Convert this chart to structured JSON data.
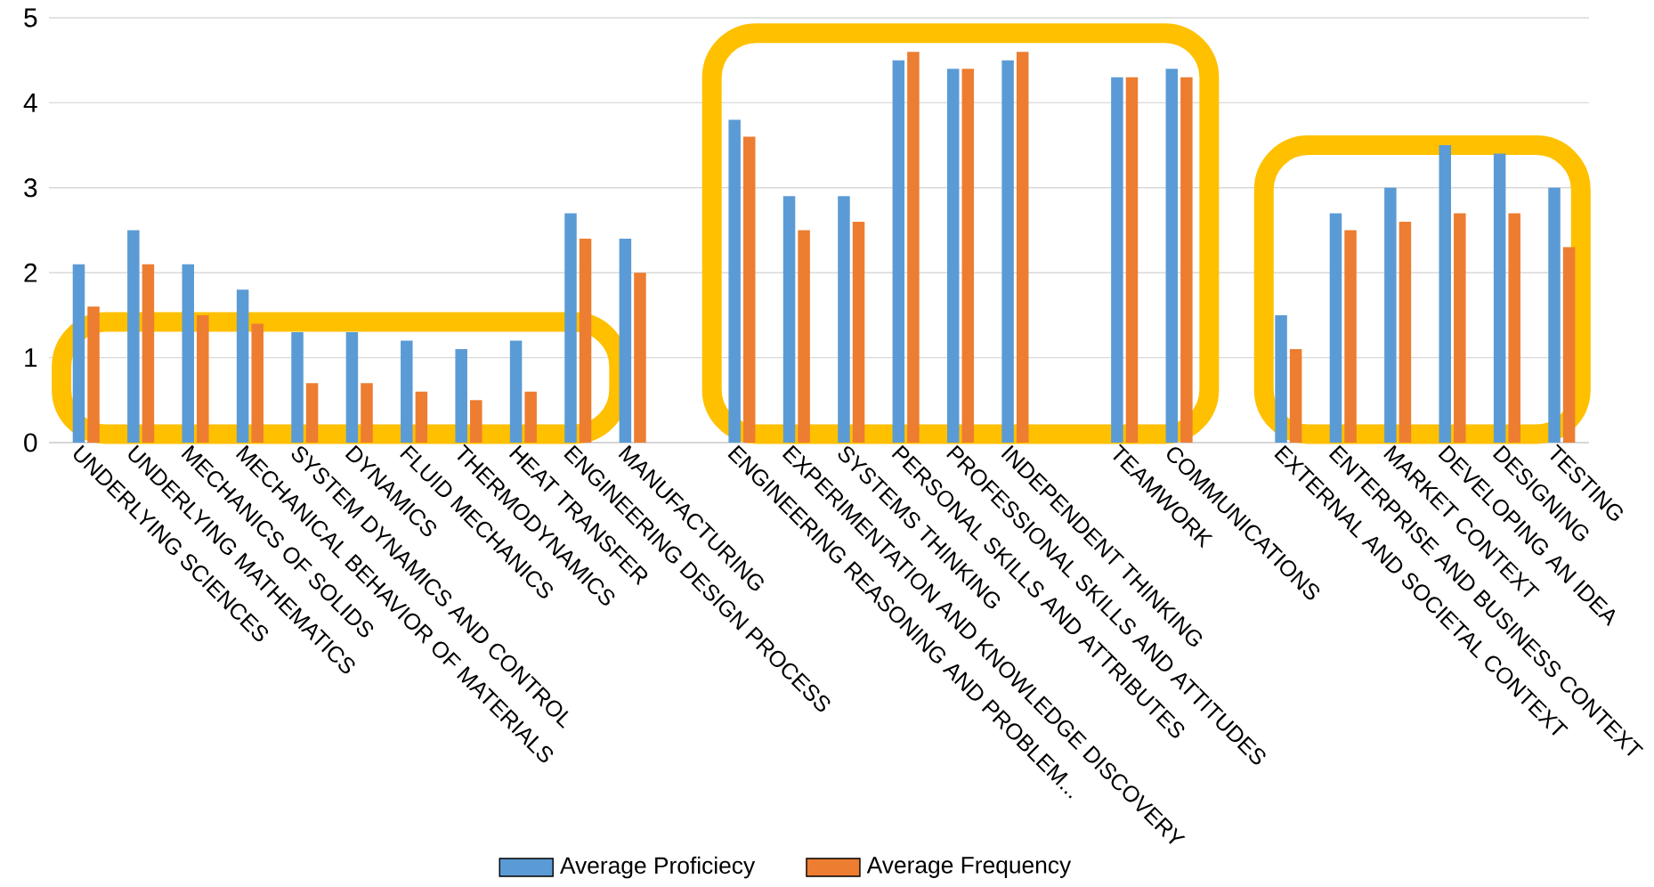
{
  "chart_data": {
    "type": "bar",
    "categories": [
      "UNDERLYING SCIENCES",
      "UNDERLYING MATHEMATICS",
      "MECHANICS OF SOLIDS",
      "MECHANICAL BEHAVIOR OF MATERIALS",
      "SYSTEM DYNAMICS AND CONTROL",
      "DYNAMICS",
      "FLUID MECHANICS",
      "THERMODYNAMICS",
      "HEAT TRANSFER",
      "ENGINEERING DESIGN PROCESS",
      "MANUFACTURING",
      null,
      "ENGINEERING REASONING AND PROBLEM...",
      "EXPERIMENTATION AND KNOWLEDGE DISCOVERY",
      "SYSTEMS THINKING",
      "PERSONAL SKILLS AND ATTRIBUTES",
      "PROFESSIONAL SKILLS AND ATTITUDES",
      "INDEPENDENT THINKING",
      null,
      "TEAMWORK",
      "COMMUNICATIONS",
      null,
      "EXTERNAL AND SOCIETAL CONTEXT",
      "ENTERPRISE AND BUSINESS CONTEXT",
      "MARKET CONTEXT",
      "DEVELOPING AN IDEA",
      "DESIGNING",
      "TESTING"
    ],
    "series": [
      {
        "name": "Average Proficiecy",
        "color": "#5b9bd5",
        "values": [
          2.1,
          2.5,
          2.1,
          1.8,
          1.3,
          1.3,
          1.2,
          1.1,
          1.2,
          2.7,
          2.4,
          null,
          3.8,
          2.9,
          2.9,
          4.5,
          4.4,
          4.5,
          null,
          4.3,
          4.4,
          null,
          1.5,
          2.7,
          3.0,
          3.5,
          3.4,
          3.0
        ]
      },
      {
        "name": "Average Frequency",
        "color": "#ed7d31",
        "values": [
          1.6,
          2.1,
          1.5,
          1.4,
          0.7,
          0.7,
          0.6,
          0.5,
          0.6,
          2.4,
          2.0,
          null,
          3.6,
          2.5,
          2.6,
          4.6,
          4.4,
          4.6,
          null,
          4.3,
          4.3,
          null,
          1.1,
          2.5,
          2.6,
          2.7,
          2.7,
          2.3
        ]
      }
    ],
    "ylim": [
      0,
      5
    ],
    "yticks": [
      0,
      1,
      2,
      3,
      4,
      5
    ],
    "grid": "y",
    "legend": "bottom"
  }
}
